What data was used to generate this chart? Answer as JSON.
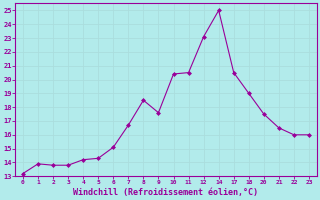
{
  "x_positions": [
    0,
    1,
    2,
    3,
    4,
    5,
    6,
    7,
    8,
    9,
    10,
    11,
    12,
    13,
    14,
    15,
    16,
    17,
    18,
    19
  ],
  "x_labels": [
    "0",
    "1",
    "2",
    "3",
    "4",
    "5",
    "6",
    "7",
    "8",
    "9",
    "10",
    "11",
    "12",
    "14",
    "17",
    "18",
    "20",
    "21",
    "22",
    "23"
  ],
  "y": [
    13.2,
    13.9,
    13.8,
    13.8,
    14.2,
    14.3,
    15.1,
    16.7,
    18.5,
    17.6,
    20.4,
    20.5,
    23.1,
    25.0,
    20.5,
    19.0,
    17.5,
    16.5,
    16.0,
    16.0
  ],
  "yticks": [
    13,
    14,
    15,
    16,
    17,
    18,
    19,
    20,
    21,
    22,
    23,
    24,
    25
  ],
  "ylim": [
    13,
    25.5
  ],
  "xlim": [
    -0.5,
    19.5
  ],
  "xlabel": "Windchill (Refroidissement éolien,°C)",
  "line_color": "#990099",
  "marker_color": "#990099",
  "bg_color": "#b2ebeb",
  "grid_color": "#aadddd",
  "xlabel_color": "#990099"
}
